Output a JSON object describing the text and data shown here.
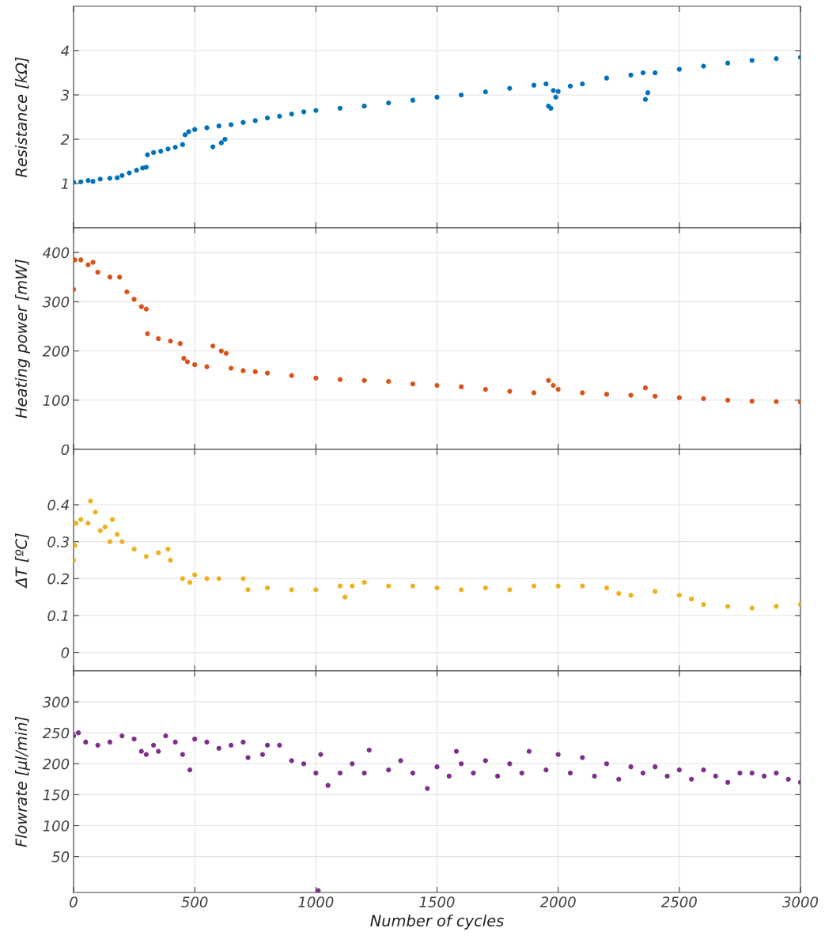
{
  "chart_data": [
    {
      "type": "scatter",
      "ylabel": "Resistance [kΩ]",
      "xlim": [
        0,
        3000
      ],
      "xticks": [
        0,
        500,
        1000,
        1500,
        2000,
        2500,
        3000
      ],
      "ylim": [
        0,
        5
      ],
      "yticks": [
        1,
        2,
        3,
        4
      ],
      "grid": true,
      "tick_labels": "y",
      "marker": "circle",
      "series": [
        {
          "color": "#0072bd",
          "x": [
            0,
            30,
            60,
            80,
            110,
            150,
            180,
            200,
            230,
            260,
            285,
            300,
            305,
            330,
            360,
            390,
            420,
            450,
            460,
            475,
            500,
            550,
            575,
            600,
            610,
            625,
            650,
            700,
            750,
            800,
            850,
            900,
            950,
            1000,
            1100,
            1200,
            1300,
            1400,
            1500,
            1600,
            1700,
            1800,
            1900,
            1950,
            1960,
            1970,
            1980,
            1990,
            2000,
            2050,
            2100,
            2200,
            2300,
            2350,
            2360,
            2370,
            2400,
            2500,
            2600,
            2700,
            2800,
            2900,
            3000
          ],
          "values": [
            1.03,
            1.04,
            1.07,
            1.05,
            1.1,
            1.12,
            1.13,
            1.18,
            1.24,
            1.3,
            1.35,
            1.37,
            1.65,
            1.7,
            1.73,
            1.78,
            1.82,
            1.88,
            2.1,
            2.17,
            2.22,
            2.26,
            1.83,
            2.3,
            1.92,
            2.0,
            2.33,
            2.38,
            2.42,
            2.48,
            2.52,
            2.57,
            2.62,
            2.65,
            2.7,
            2.75,
            2.82,
            2.88,
            2.95,
            3.0,
            3.07,
            3.15,
            3.22,
            3.25,
            2.75,
            2.7,
            3.1,
            2.95,
            3.08,
            3.2,
            3.25,
            3.38,
            3.45,
            3.5,
            2.9,
            3.05,
            3.5,
            3.58,
            3.65,
            3.72,
            3.78,
            3.82,
            3.85
          ]
        }
      ]
    },
    {
      "type": "scatter",
      "ylabel": "Heating power [mW]",
      "xlim": [
        0,
        3000
      ],
      "xticks": [
        0,
        500,
        1000,
        1500,
        2000,
        2500,
        3000
      ],
      "ylim": [
        0,
        450
      ],
      "yticks": [
        0,
        100,
        200,
        300,
        400
      ],
      "grid": true,
      "tick_labels": "y",
      "marker": "circle",
      "series": [
        {
          "color": "#d95319",
          "x": [
            0,
            5,
            30,
            60,
            80,
            100,
            150,
            190,
            220,
            250,
            280,
            300,
            305,
            350,
            400,
            440,
            455,
            470,
            500,
            550,
            575,
            610,
            630,
            650,
            700,
            750,
            800,
            900,
            1000,
            1100,
            1200,
            1300,
            1400,
            1500,
            1600,
            1700,
            1800,
            1900,
            1960,
            1980,
            2000,
            2100,
            2200,
            2300,
            2360,
            2400,
            2500,
            2600,
            2700,
            2800,
            2900,
            3000
          ],
          "values": [
            325,
            385,
            385,
            375,
            380,
            360,
            350,
            350,
            320,
            305,
            290,
            285,
            235,
            225,
            220,
            215,
            185,
            178,
            172,
            168,
            210,
            200,
            195,
            165,
            160,
            158,
            155,
            150,
            145,
            142,
            140,
            138,
            133,
            130,
            127,
            122,
            118,
            115,
            140,
            130,
            122,
            115,
            112,
            110,
            125,
            108,
            105,
            103,
            100,
            98,
            97,
            96
          ]
        }
      ]
    },
    {
      "type": "scatter",
      "ylabel": "ΔT [ºC]",
      "xlim": [
        0,
        3000
      ],
      "xticks": [
        0,
        500,
        1000,
        1500,
        2000,
        2500,
        3000
      ],
      "ylim": [
        -0.05,
        0.55
      ],
      "yticks": [
        0,
        0.1,
        0.2,
        0.3,
        0.4
      ],
      "grid": true,
      "tick_labels": "y",
      "marker": "circle",
      "series": [
        {
          "color": "#edb120",
          "x": [
            0,
            5,
            10,
            30,
            60,
            70,
            90,
            110,
            130,
            150,
            160,
            180,
            200,
            250,
            300,
            350,
            390,
            400,
            450,
            480,
            500,
            550,
            600,
            700,
            720,
            800,
            900,
            1000,
            1100,
            1120,
            1150,
            1200,
            1300,
            1400,
            1500,
            1600,
            1700,
            1800,
            1900,
            2000,
            2100,
            2200,
            2250,
            2300,
            2400,
            2500,
            2550,
            2600,
            2700,
            2800,
            2900,
            3000
          ],
          "values": [
            0.25,
            0.29,
            0.35,
            0.36,
            0.35,
            0.41,
            0.38,
            0.33,
            0.34,
            0.3,
            0.36,
            0.32,
            0.3,
            0.28,
            0.26,
            0.27,
            0.28,
            0.25,
            0.2,
            0.19,
            0.21,
            0.2,
            0.2,
            0.2,
            0.17,
            0.175,
            0.17,
            0.17,
            0.18,
            0.15,
            0.18,
            0.19,
            0.18,
            0.18,
            0.175,
            0.17,
            0.175,
            0.17,
            0.18,
            0.18,
            0.18,
            0.175,
            0.16,
            0.155,
            0.165,
            0.155,
            0.145,
            0.13,
            0.125,
            0.12,
            0.125,
            0.13
          ]
        }
      ]
    },
    {
      "type": "scatter",
      "ylabel": "Flowrate [µl/min]",
      "xlabel": "Number of cycles",
      "xlim": [
        0,
        3000
      ],
      "xticks": [
        0,
        500,
        1000,
        1500,
        2000,
        2500,
        3000
      ],
      "ylim": [
        -8,
        350
      ],
      "yticks": [
        50,
        100,
        150,
        200,
        250,
        300
      ],
      "grid": true,
      "marker": "circle",
      "series": [
        {
          "color": "#7e2f8e",
          "x": [
            0,
            20,
            50,
            100,
            150,
            200,
            250,
            280,
            300,
            330,
            350,
            380,
            420,
            450,
            480,
            500,
            550,
            600,
            650,
            700,
            720,
            780,
            800,
            850,
            900,
            950,
            1000,
            1010,
            1020,
            1050,
            1100,
            1150,
            1200,
            1220,
            1300,
            1350,
            1400,
            1460,
            1500,
            1550,
            1580,
            1600,
            1650,
            1700,
            1750,
            1800,
            1850,
            1880,
            1950,
            2000,
            2050,
            2100,
            2150,
            2200,
            2250,
            2300,
            2350,
            2400,
            2450,
            2500,
            2550,
            2600,
            2650,
            2700,
            2750,
            2800,
            2850,
            2900,
            2950,
            3000
          ],
          "values": [
            245,
            250,
            235,
            230,
            235,
            245,
            240,
            220,
            215,
            230,
            220,
            245,
            235,
            215,
            190,
            240,
            235,
            225,
            230,
            235,
            210,
            215,
            230,
            230,
            205,
            200,
            185,
            -5,
            215,
            165,
            185,
            200,
            185,
            222,
            190,
            205,
            185,
            160,
            195,
            180,
            220,
            200,
            185,
            205,
            180,
            200,
            185,
            220,
            190,
            215,
            185,
            210,
            180,
            200,
            175,
            195,
            185,
            195,
            180,
            190,
            175,
            190,
            180,
            170,
            185,
            185,
            180,
            185,
            175,
            170
          ]
        }
      ]
    }
  ]
}
